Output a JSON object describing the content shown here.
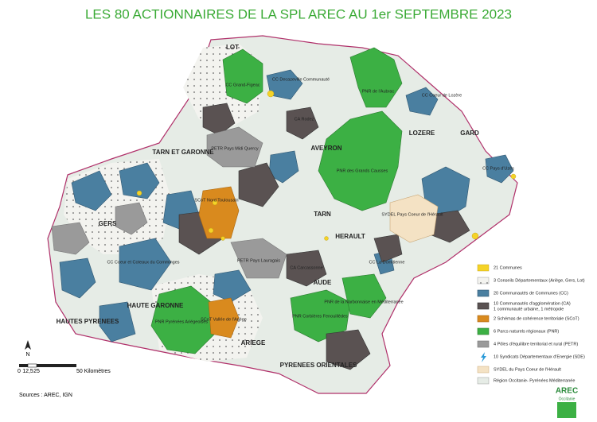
{
  "title": "LES 80 ACTIONNAIRES DE LA SPL AREC AU 1er SEPTEMBRE 2023",
  "departments": [
    "LOT",
    "AVEYRON",
    "LOZERE",
    "GARD",
    "TARN ET GARONNE",
    "GERS",
    "TARN",
    "HERAULT",
    "AUDE",
    "HAUTE GARONNE",
    "HAUTES PYRENEES",
    "ARIEGE",
    "PYRENEES ORIENTALES"
  ],
  "places": [
    "CC Grand-Figeac",
    "PNR de l'Aubrac",
    "CC Coeur de Lozère",
    "CA Rodez",
    "PNR des Grands Causses",
    "SYDEL Pays Coeur de l'Hérault",
    "PETR Pays Midi Quercy",
    "PETR Pays Lauragais",
    "CA Carcassonne",
    "PNR de la Narbonnaise en Méditerranée",
    "PNR Corbières Fenouillèdes",
    "PNR Pyrénées Ariégeoises",
    "SCoT Vallée de l'Ariège",
    "SCoT Nord Toulousain",
    "CC Pays d'Uzès",
    "CC Decazeville Communauté",
    "CC La Domitienne",
    "CC Coeur et Coteaux du Comminges"
  ],
  "legend": [
    {
      "label": "21 Communes"
    },
    {
      "label": "3 Conseils Départementaux (Ariège, Gers, Lot)"
    },
    {
      "label": "20 Communautés de Communes (CC)"
    },
    {
      "label": "10 Communautés d'agglomération (CA)",
      "note": "1 communauté urbaine, 1 métropole"
    },
    {
      "label": "2 Schémas de cohérence territoriale (SCoT)"
    },
    {
      "label": "6 Parcs naturels régionaux (PNR)"
    },
    {
      "label": "4 Pôles d'équilibre territorial et rural (PETR)"
    },
    {
      "label": "10 Syndicats Départementaux d'Energie (SDE)"
    },
    {
      "label": "SYDEL du Pays Coeur de l'Hérault"
    },
    {
      "label": "Région Occitanie- Pyrénées Méditerranée"
    }
  ],
  "scale": {
    "labels": [
      "0",
      "12,5",
      "25",
      "50 Kilomètres"
    ],
    "north": "N"
  },
  "source": "Sources : AREC, IGN",
  "logo": {
    "name": "AREC",
    "subtitle": "Occitanie"
  }
}
